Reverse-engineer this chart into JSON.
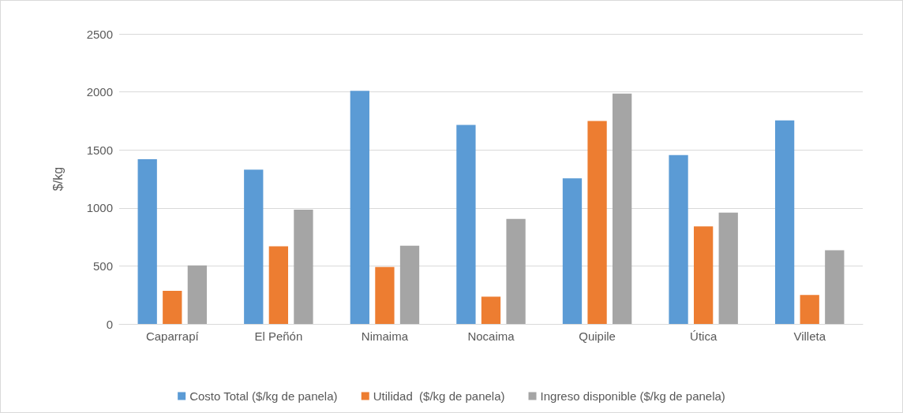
{
  "chart_data": {
    "type": "bar",
    "ylabel": "$/kg",
    "categories": [
      "Caparrapí",
      "El Peñón",
      "Nimaima",
      "Nocaima",
      "Quipile",
      "Útica",
      "Villeta"
    ],
    "series": [
      {
        "name": "Costo Total ($/kg de panela)",
        "color": "#5b9bd5",
        "values": [
          1420,
          1330,
          2010,
          1715,
          1255,
          1455,
          1755
        ]
      },
      {
        "name": "Utilidad  ($/kg de panela)",
        "color": "#ed7d31",
        "values": [
          285,
          670,
          490,
          235,
          1750,
          840,
          250
        ]
      },
      {
        "name": "Ingreso disponible ($/kg de panela)",
        "color": "#a5a5a5",
        "values": [
          505,
          985,
          675,
          905,
          1985,
          960,
          635
        ]
      }
    ],
    "ylim": [
      0,
      2500
    ],
    "yticks": [
      0,
      500,
      1000,
      1500,
      2000,
      2500
    ],
    "grid": "y",
    "legend": "bottom"
  }
}
